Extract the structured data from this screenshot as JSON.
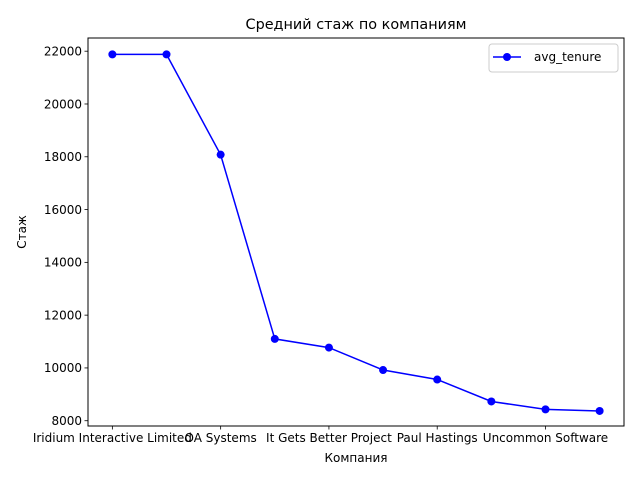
{
  "chart_data": {
    "type": "line",
    "title": "Средний стаж по компаниям",
    "xlabel": "Компания",
    "ylabel": "Стаж",
    "x_tick_labels": [
      "Iridium Interactive Limited",
      "OA Systems",
      "It Gets Better Project",
      "Paul Hastings",
      "Uncommon Software"
    ],
    "x_tick_positions": [
      0,
      2,
      4,
      6,
      8
    ],
    "x": [
      0,
      1,
      2,
      3,
      4,
      5,
      6,
      7,
      8,
      9
    ],
    "y_ticks": [
      8000,
      10000,
      12000,
      14000,
      16000,
      18000,
      20000,
      22000
    ],
    "xlim": [
      -0.45,
      9.45
    ],
    "ylim": [
      7800,
      22500
    ],
    "grid": false,
    "legend_position": "top-right",
    "series": [
      {
        "name": "avg_tenure",
        "color": "#0000ff",
        "marker": "circle",
        "values": [
          21880,
          21880,
          18080,
          11100,
          10770,
          9920,
          9560,
          8730,
          8430,
          8370
        ]
      }
    ]
  }
}
